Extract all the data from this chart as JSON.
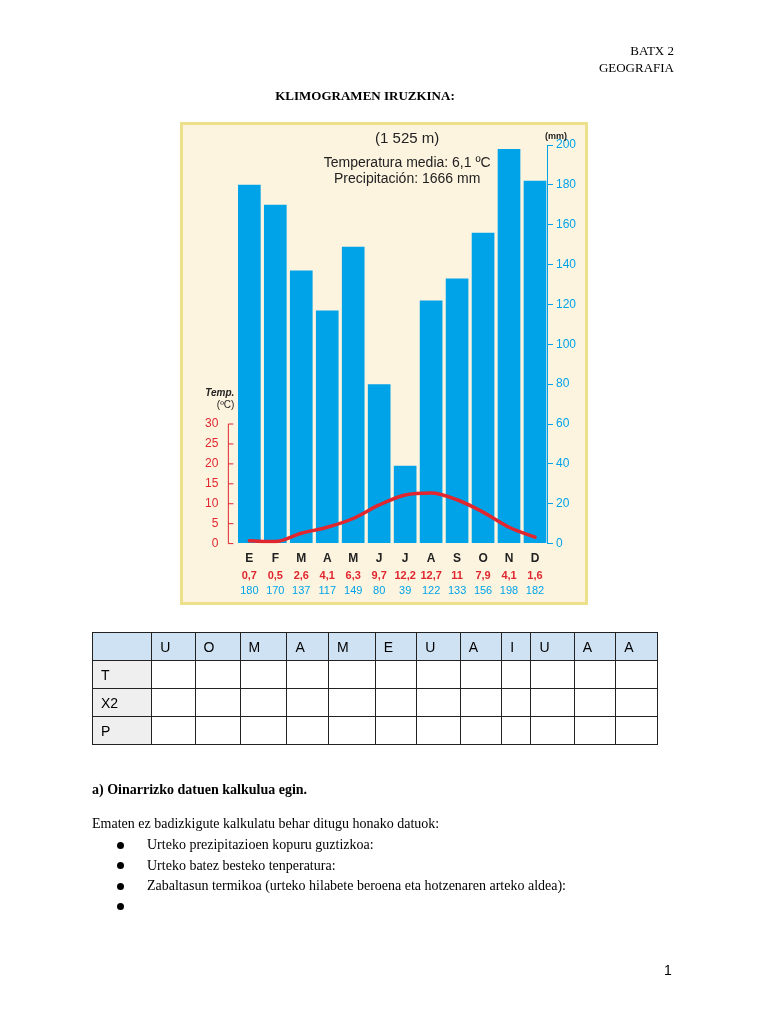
{
  "chart_data": {
    "type": "bar",
    "title": "KLIMOGRAMEN IRUZKINA:",
    "subtitle": "(1 525 m)",
    "ylabel": "Temp. (ºC)",
    "y2label": "(mm)",
    "categories": [
      "E",
      "F",
      "M",
      "A",
      "M",
      "J",
      "J",
      "A",
      "S",
      "O",
      "N",
      "D"
    ],
    "series": [
      {
        "axis": "y2",
        "color": "#00a3e8",
        "values": [
          180,
          170,
          137,
          117,
          149,
          80,
          39,
          122,
          133,
          156,
          198,
          182
        ],
        "value_labels": [
          "180",
          "170",
          "137",
          "117",
          "149",
          "80",
          "39",
          "122",
          "133",
          "156",
          "198",
          "182"
        ]
      },
      {
        "type": "line",
        "axis": "y",
        "color": "#e0262e",
        "values": [
          0.7,
          0.5,
          2.6,
          4.1,
          6.3,
          9.7,
          12.2,
          12.7,
          11,
          7.9,
          4.1,
          1.6
        ],
        "value_labels": [
          "0,7",
          "0,5",
          "2,6",
          "4,1",
          "6,3",
          "9,7",
          "12,2",
          "12,7",
          "11",
          "7,9",
          "4,1",
          "1,6"
        ]
      }
    ],
    "ylim": [
      0,
      100
    ],
    "yticks": [
      0,
      5,
      10,
      15,
      20,
      25,
      30
    ],
    "y2lim": [
      0,
      200
    ],
    "y2ticks": [
      0,
      20,
      40,
      60,
      80,
      100,
      120,
      140,
      160,
      180,
      200
    ],
    "grid": false,
    "legend": false,
    "annotations": [
      "BATX 2",
      "GEOGRAFIA",
      "Temperatura media: 6,1 ºC",
      "Precipitación: 1666 mm",
      "U",
      "O",
      "M",
      "A",
      "M",
      "E",
      "U",
      "A",
      "I",
      "U",
      "A",
      "A",
      "T",
      "X2",
      "P",
      "a) Oinarrizko datuen kalkulua egin.",
      "Ematen ez badizkigute kalkulatu behar ditugu honako datuok:",
      "Urteko prezipitazioen kopuru guztizkoa:",
      "Urteko batez besteko tenperatura:",
      "Zabaltasun termikoa (urteko hilabete beroena eta hotzenaren arteko aldea):",
      "1"
    ]
  }
}
